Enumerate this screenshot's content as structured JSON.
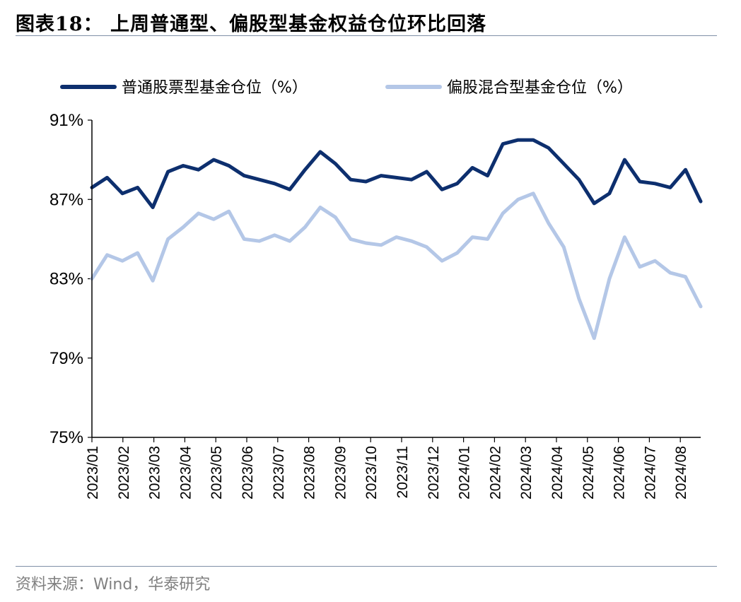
{
  "title": "图表18： 上周普通型、偏股型基金权益仓位环比回落",
  "source": "资料来源：Wind，华泰研究",
  "colors": {
    "series1": "#0d2f6e",
    "series2": "#b4c7e7",
    "axis": "#000000",
    "rule": "#7f8fa6"
  },
  "chart_data": {
    "type": "line",
    "title": "",
    "xlabel": "",
    "ylabel": "",
    "ylim": [
      75,
      91
    ],
    "y_ticks": [
      "75%",
      "79%",
      "83%",
      "87%",
      "91%"
    ],
    "x_tick_labels": [
      "2023/01",
      "2023/02",
      "2023/03",
      "2023/04",
      "2023/05",
      "2023/06",
      "2023/07",
      "2023/08",
      "2023/09",
      "2023/10",
      "2023/11",
      "2023/12",
      "2024/01",
      "2024/02",
      "2024/03",
      "2024/04",
      "2024/05",
      "2024/06",
      "2024/07",
      "2024/08"
    ],
    "legend_position": "top",
    "grid": false,
    "x": [
      "2023/01",
      "2023/01",
      "2023/02",
      "2023/02",
      "2023/03",
      "2023/03",
      "2023/04",
      "2023/04",
      "2023/05",
      "2023/05",
      "2023/06",
      "2023/06",
      "2023/06",
      "2023/07",
      "2023/07",
      "2023/08",
      "2023/08",
      "2023/09",
      "2023/09",
      "2023/10",
      "2023/10",
      "2023/11",
      "2023/11",
      "2023/12",
      "2023/12",
      "2024/01",
      "2024/01",
      "2024/02",
      "2024/02",
      "2024/03",
      "2024/03",
      "2024/04",
      "2024/04",
      "2024/05",
      "2024/05",
      "2024/06",
      "2024/06",
      "2024/07",
      "2024/07",
      "2024/08",
      "2024/08"
    ],
    "series": [
      {
        "name": "普通股票型基金仓位（%）",
        "values": [
          87.6,
          88.1,
          87.3,
          87.6,
          86.6,
          88.4,
          88.7,
          88.5,
          89.0,
          88.7,
          88.2,
          88.0,
          87.8,
          87.5,
          88.5,
          89.4,
          88.8,
          88.0,
          87.9,
          88.2,
          88.1,
          88.0,
          88.4,
          87.5,
          87.8,
          88.6,
          88.2,
          89.8,
          90.0,
          90.0,
          89.6,
          88.8,
          88.0,
          86.8,
          87.3,
          89.0,
          87.9,
          87.8,
          87.6,
          88.5,
          86.9
        ]
      },
      {
        "name": "偏股混合型基金仓位（%）",
        "values": [
          83.0,
          84.2,
          83.9,
          84.3,
          82.9,
          85.0,
          85.6,
          86.3,
          86.0,
          86.4,
          85.0,
          84.9,
          85.2,
          84.9,
          85.6,
          86.6,
          86.1,
          85.0,
          84.8,
          84.7,
          85.1,
          84.9,
          84.6,
          83.9,
          84.3,
          85.1,
          85.0,
          86.3,
          87.0,
          87.3,
          85.8,
          84.6,
          82.0,
          80.0,
          83.0,
          85.1,
          83.6,
          83.9,
          83.3,
          83.1,
          81.6
        ]
      }
    ]
  }
}
